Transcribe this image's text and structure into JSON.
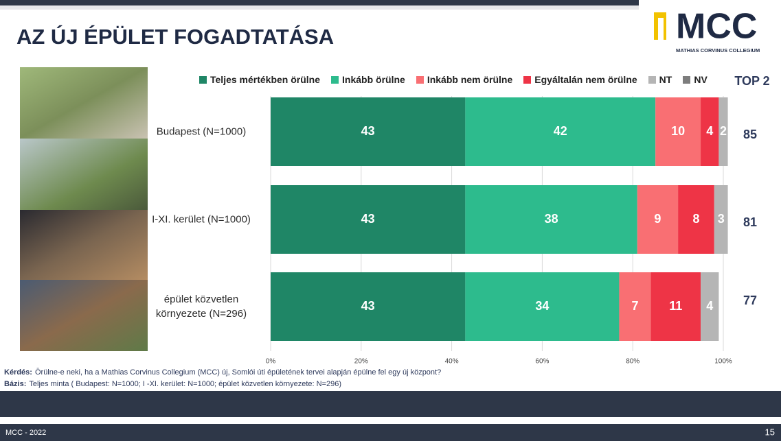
{
  "header": {
    "title": "AZ ÚJ ÉPÜLET FOGADTATÁSA",
    "logo": "MCC",
    "logo_subtitle": "MATHIAS CORVINUS COLLEGIUM"
  },
  "chart_data": {
    "type": "stacked_barh",
    "categories": [
      "Budapest (N=1000)",
      "I-XI. kerület (N=1000)",
      "épület közvetlen környezete (N=296)"
    ],
    "series": [
      {
        "name": "Teljes mértékben örülne",
        "color": "#1f8666",
        "values": [
          43,
          43,
          43
        ]
      },
      {
        "name": "Inkább örülne",
        "color": "#2dbb8d",
        "values": [
          42,
          38,
          34
        ]
      },
      {
        "name": "Inkább nem örülne",
        "color": "#f96f73",
        "values": [
          10,
          9,
          7
        ]
      },
      {
        "name": "Egyáltalán nem örülne",
        "color": "#ee3446",
        "values": [
          4,
          8,
          11
        ]
      },
      {
        "name": "NT",
        "color": "#b5b5b5",
        "values": [
          2,
          3,
          4
        ]
      },
      {
        "name": "NV",
        "color": "#7d7d7d",
        "values": [
          0,
          0,
          0
        ]
      }
    ],
    "xlim": [
      0,
      100
    ],
    "xticks": [
      {
        "value": 0,
        "label": "0%"
      },
      {
        "value": 20,
        "label": "20%"
      },
      {
        "value": 40,
        "label": "40%"
      },
      {
        "value": 60,
        "label": "60%"
      },
      {
        "value": 80,
        "label": "80%"
      },
      {
        "value": 100,
        "label": "100%"
      }
    ],
    "grid": true,
    "top2": {
      "title": "TOP 2",
      "values": [
        85,
        81,
        77
      ]
    }
  },
  "notes": [
    {
      "label": "Kérdés:",
      "text": "Örülne-e neki, ha a  Mathias Corvinus Collegium (MCC) új, Somlói úti épületének tervei alapján épülne fel egy új központ?"
    },
    {
      "label": "Bázis:",
      "text": "Teljes minta ( Budapest: N=1000; I -XI. kerület: N=1000; épület közvetlen környezete: N=296)"
    }
  ],
  "footer": {
    "left": "MCC - 2022",
    "page": "15"
  }
}
